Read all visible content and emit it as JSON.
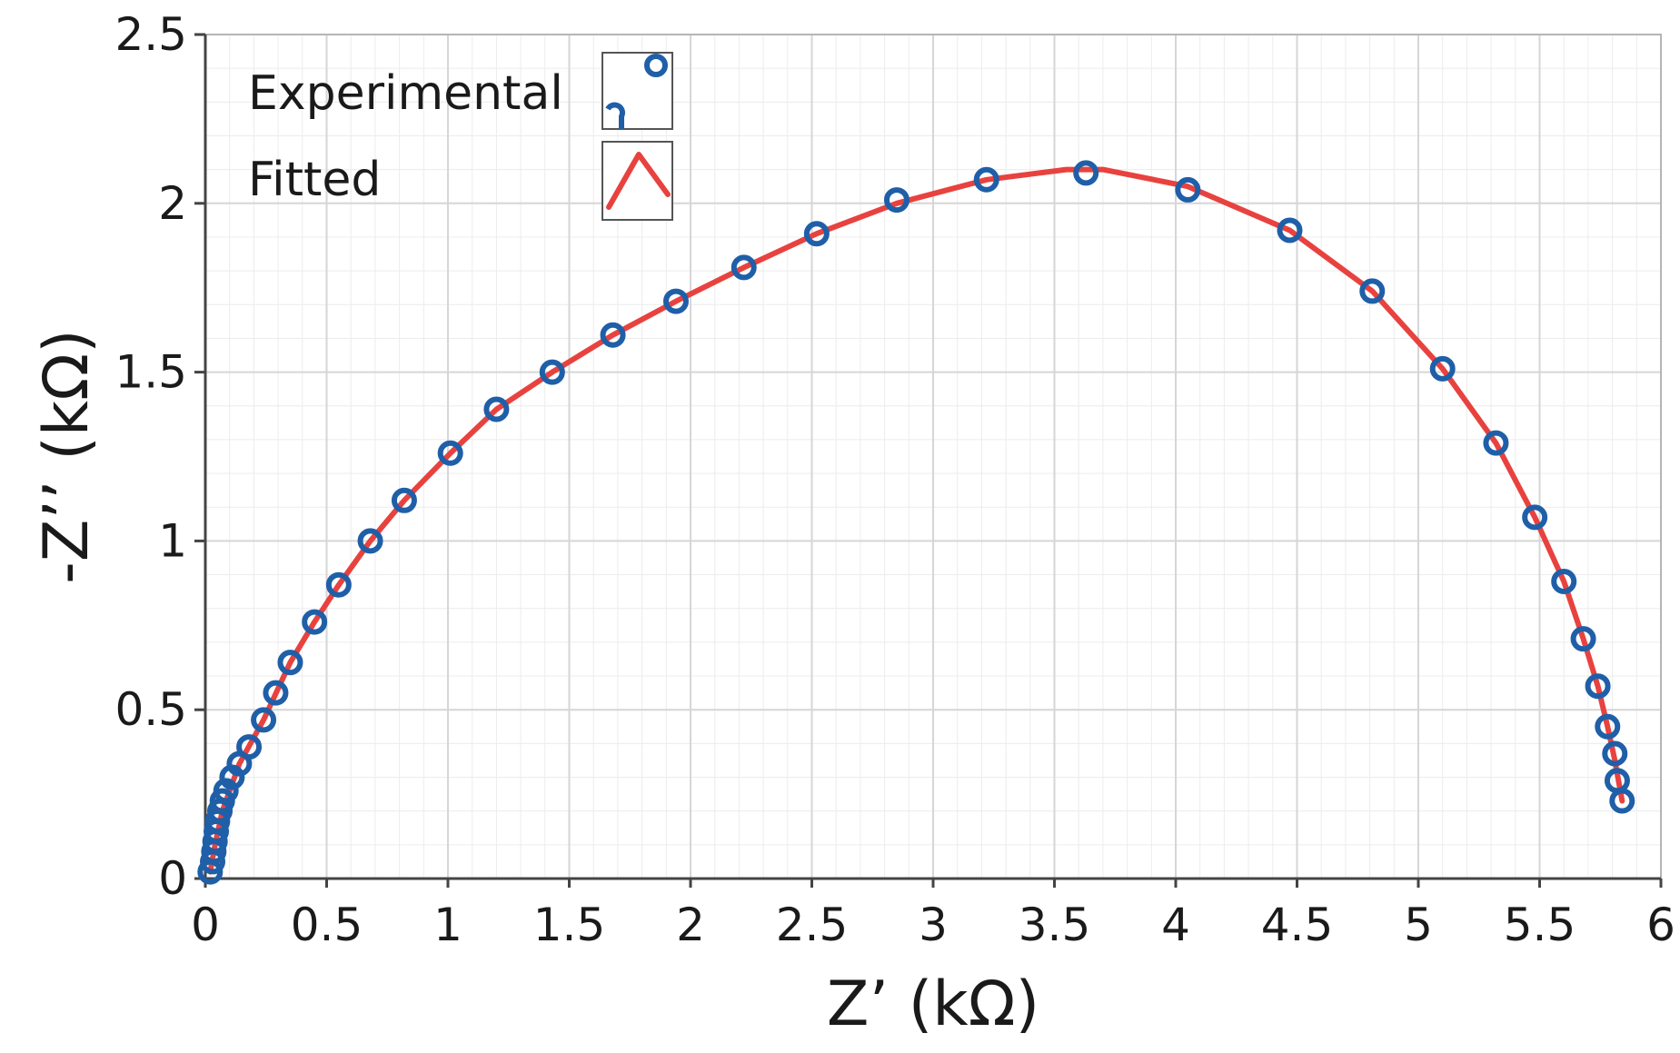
{
  "chart_data": {
    "type": "scatter",
    "xlabel": "Z’ (kΩ)",
    "ylabel": "-Z’’ (kΩ)",
    "xlim": [
      0,
      6
    ],
    "ylim": [
      0,
      2.5
    ],
    "x_major_ticks": [
      "0",
      "0.5",
      "1",
      "1.5",
      "2",
      "2.5",
      "3",
      "3.5",
      "4",
      "4.5",
      "5",
      "5.5",
      "6"
    ],
    "y_major_ticks": [
      "0",
      "0.5",
      "1",
      "1.5",
      "2",
      "2.5"
    ],
    "x_minor_step": 0.1,
    "y_minor_step": 0.1,
    "grid": true,
    "legend_position": "top-left",
    "colors": {
      "experimental": "#1f5fa8",
      "fitted": "#e8423f",
      "grid_major": "#d6d6d6",
      "grid_minor": "#ececec",
      "axis": "#444444"
    },
    "series": [
      {
        "name": "Experimental",
        "style": "markers",
        "points": [
          [
            0.02,
            0.02
          ],
          [
            0.03,
            0.05
          ],
          [
            0.035,
            0.08
          ],
          [
            0.04,
            0.11
          ],
          [
            0.045,
            0.14
          ],
          [
            0.05,
            0.17
          ],
          [
            0.06,
            0.2
          ],
          [
            0.07,
            0.23
          ],
          [
            0.085,
            0.26
          ],
          [
            0.11,
            0.3
          ],
          [
            0.14,
            0.34
          ],
          [
            0.18,
            0.39
          ],
          [
            0.24,
            0.47
          ],
          [
            0.29,
            0.55
          ],
          [
            0.35,
            0.64
          ],
          [
            0.45,
            0.76
          ],
          [
            0.55,
            0.87
          ],
          [
            0.68,
            1.0
          ],
          [
            0.82,
            1.12
          ],
          [
            1.01,
            1.26
          ],
          [
            1.2,
            1.39
          ],
          [
            1.43,
            1.5
          ],
          [
            1.68,
            1.61
          ],
          [
            1.94,
            1.71
          ],
          [
            2.22,
            1.81
          ],
          [
            2.52,
            1.91
          ],
          [
            2.85,
            2.01
          ],
          [
            3.22,
            2.07
          ],
          [
            3.63,
            2.09
          ],
          [
            4.05,
            2.04
          ],
          [
            4.47,
            1.92
          ],
          [
            4.81,
            1.74
          ],
          [
            5.1,
            1.51
          ],
          [
            5.32,
            1.29
          ],
          [
            5.48,
            1.07
          ],
          [
            5.6,
            0.88
          ],
          [
            5.68,
            0.71
          ],
          [
            5.74,
            0.57
          ],
          [
            5.78,
            0.45
          ],
          [
            5.81,
            0.37
          ],
          [
            5.82,
            0.29
          ],
          [
            5.84,
            0.23
          ]
        ]
      },
      {
        "name": "Fitted",
        "style": "line",
        "points": [
          [
            0.02,
            0.02
          ],
          [
            0.04,
            0.1
          ],
          [
            0.07,
            0.2
          ],
          [
            0.14,
            0.34
          ],
          [
            0.24,
            0.47
          ],
          [
            0.35,
            0.64
          ],
          [
            0.45,
            0.76
          ],
          [
            0.55,
            0.87
          ],
          [
            0.68,
            1.0
          ],
          [
            0.82,
            1.12
          ],
          [
            1.01,
            1.26
          ],
          [
            1.2,
            1.39
          ],
          [
            1.43,
            1.5
          ],
          [
            1.68,
            1.61
          ],
          [
            1.94,
            1.71
          ],
          [
            2.22,
            1.81
          ],
          [
            2.52,
            1.91
          ],
          [
            2.85,
            2.0
          ],
          [
            3.22,
            2.07
          ],
          [
            3.55,
            2.1
          ],
          [
            3.7,
            2.1
          ],
          [
            4.05,
            2.05
          ],
          [
            4.47,
            1.92
          ],
          [
            4.81,
            1.74
          ],
          [
            5.1,
            1.51
          ],
          [
            5.32,
            1.29
          ],
          [
            5.48,
            1.07
          ],
          [
            5.6,
            0.88
          ],
          [
            5.68,
            0.71
          ],
          [
            5.74,
            0.57
          ],
          [
            5.78,
            0.45
          ],
          [
            5.81,
            0.35
          ],
          [
            5.84,
            0.23
          ]
        ]
      }
    ]
  }
}
